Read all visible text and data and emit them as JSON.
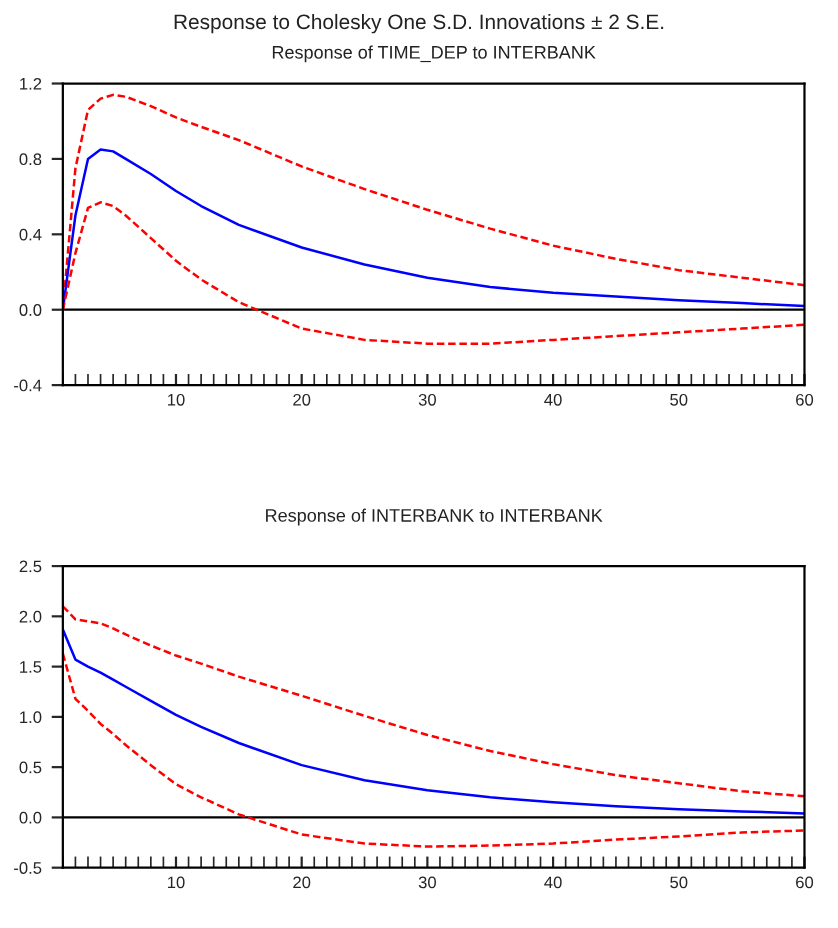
{
  "chart_data": [
    {
      "type": "line",
      "title": "Response to Cholesky One S.D. Innovations ± 2 S.E.",
      "subtitle": "Response of TIME_DEP to INTERBANK",
      "x": [
        1,
        2,
        3,
        4,
        5,
        6,
        8,
        10,
        12,
        15,
        20,
        25,
        30,
        35,
        40,
        45,
        50,
        55,
        60
      ],
      "series": [
        {
          "color": "#ff0000",
          "line_style": "dashed",
          "values": [
            0.0,
            0.75,
            1.06,
            1.12,
            1.14,
            1.13,
            1.08,
            1.02,
            0.97,
            0.9,
            0.76,
            0.64,
            0.53,
            0.43,
            0.34,
            0.27,
            0.21,
            0.17,
            0.13
          ]
        },
        {
          "color": "#0000ff",
          "line_style": "solid",
          "values": [
            0.0,
            0.5,
            0.8,
            0.85,
            0.84,
            0.8,
            0.72,
            0.63,
            0.55,
            0.45,
            0.33,
            0.24,
            0.17,
            0.12,
            0.09,
            0.07,
            0.05,
            0.035,
            0.02
          ]
        },
        {
          "color": "#ff0000",
          "line_style": "dashed",
          "values": [
            0.0,
            0.3,
            0.54,
            0.57,
            0.55,
            0.5,
            0.38,
            0.26,
            0.16,
            0.04,
            -0.1,
            -0.16,
            -0.18,
            -0.18,
            -0.16,
            -0.14,
            -0.12,
            -0.1,
            -0.08
          ]
        }
      ],
      "xlim": [
        1,
        60
      ],
      "ylim": [
        -0.4,
        1.2
      ],
      "yticks": [
        {
          "value": -0.4,
          "label": "-0.4"
        },
        {
          "value": 0,
          "label": "0.0"
        },
        {
          "value": 0.4,
          "label": "0.4"
        },
        {
          "value": 0.8,
          "label": "0.8"
        },
        {
          "value": 1.2,
          "label": "1.2"
        }
      ],
      "xticks": [
        10,
        20,
        30,
        40,
        50,
        60
      ],
      "ref_lines": [
        {
          "axis": "y",
          "value": 0,
          "color": "#000000"
        }
      ],
      "grid": false,
      "legend": false
    },
    {
      "type": "line",
      "title": "Response of INTERBANK to INTERBANK",
      "x": [
        1,
        2,
        3,
        4,
        5,
        6,
        8,
        10,
        12,
        15,
        20,
        25,
        30,
        35,
        40,
        45,
        50,
        55,
        60
      ],
      "series": [
        {
          "color": "#ff0000",
          "line_style": "dashed",
          "values": [
            2.1,
            1.97,
            1.95,
            1.93,
            1.88,
            1.82,
            1.71,
            1.61,
            1.53,
            1.4,
            1.21,
            1.01,
            0.82,
            0.66,
            0.53,
            0.42,
            0.34,
            0.26,
            0.21
          ]
        },
        {
          "color": "#0000ff",
          "line_style": "solid",
          "values": [
            1.87,
            1.57,
            1.5,
            1.44,
            1.37,
            1.3,
            1.16,
            1.02,
            0.9,
            0.74,
            0.52,
            0.37,
            0.27,
            0.2,
            0.15,
            0.11,
            0.08,
            0.06,
            0.04
          ]
        },
        {
          "color": "#ff0000",
          "line_style": "dashed",
          "values": [
            1.63,
            1.18,
            1.06,
            0.93,
            0.83,
            0.72,
            0.52,
            0.33,
            0.2,
            0.03,
            -0.17,
            -0.26,
            -0.29,
            -0.28,
            -0.26,
            -0.22,
            -0.19,
            -0.15,
            -0.13
          ]
        }
      ],
      "xlim": [
        1,
        60
      ],
      "ylim": [
        -0.5,
        2.5
      ],
      "yticks": [
        {
          "value": -0.5,
          "label": "-0.5"
        },
        {
          "value": 0,
          "label": "0.0"
        },
        {
          "value": 0.5,
          "label": "0.5"
        },
        {
          "value": 1,
          "label": "1.0"
        },
        {
          "value": 1.5,
          "label": "1.5"
        },
        {
          "value": 2,
          "label": "2.0"
        },
        {
          "value": 2.5,
          "label": "2.5"
        }
      ],
      "xticks": [
        10,
        20,
        30,
        40,
        50,
        60
      ],
      "ref_lines": [
        {
          "axis": "y",
          "value": 0,
          "color": "#000000"
        }
      ],
      "grid": false,
      "legend": false
    }
  ]
}
